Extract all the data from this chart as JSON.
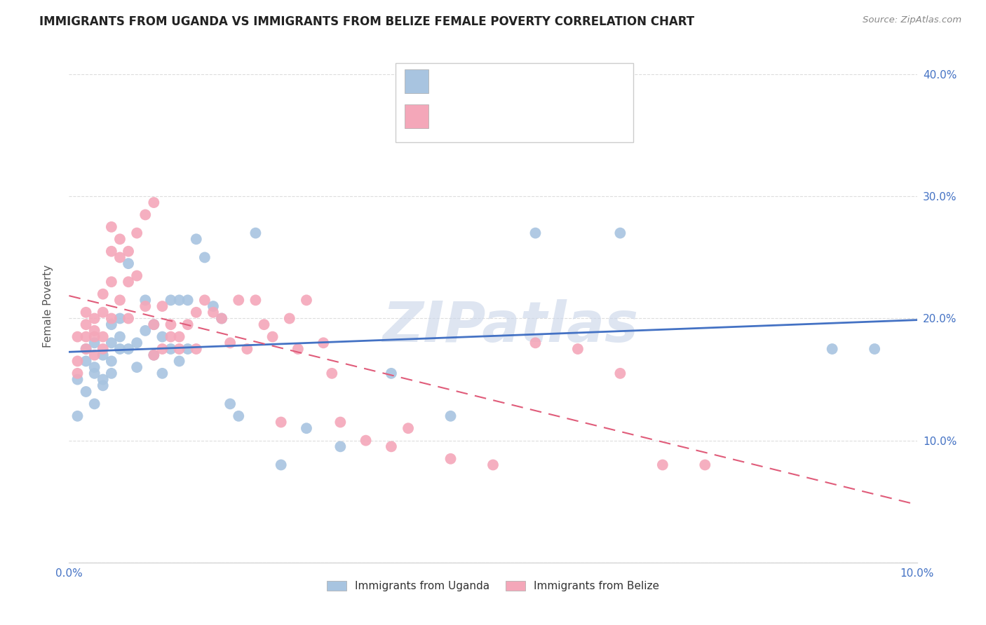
{
  "title": "IMMIGRANTS FROM UGANDA VS IMMIGRANTS FROM BELIZE FEMALE POVERTY CORRELATION CHART",
  "source": "Source: ZipAtlas.com",
  "ylabel": "Female Poverty",
  "xlim": [
    0.0,
    0.1
  ],
  "ylim": [
    0.0,
    0.42
  ],
  "uganda_color": "#a8c4e0",
  "belize_color": "#f4a7b9",
  "uganda_line_color": "#4472c4",
  "belize_line_color": "#e05c7a",
  "label_color": "#4472c4",
  "title_color": "#222222",
  "source_color": "#888888",
  "grid_color": "#dddddd",
  "background_color": "#ffffff",
  "watermark": "ZIPatlas",
  "uganda_points_x": [
    0.001,
    0.001,
    0.002,
    0.002,
    0.002,
    0.003,
    0.003,
    0.003,
    0.003,
    0.004,
    0.004,
    0.004,
    0.005,
    0.005,
    0.005,
    0.005,
    0.006,
    0.006,
    0.006,
    0.007,
    0.007,
    0.008,
    0.008,
    0.009,
    0.009,
    0.01,
    0.01,
    0.011,
    0.011,
    0.012,
    0.012,
    0.013,
    0.013,
    0.014,
    0.014,
    0.015,
    0.016,
    0.017,
    0.018,
    0.019,
    0.02,
    0.022,
    0.025,
    0.028,
    0.032,
    0.045,
    0.055,
    0.065,
    0.09,
    0.095,
    0.038
  ],
  "uganda_points_y": [
    0.15,
    0.12,
    0.165,
    0.14,
    0.175,
    0.155,
    0.13,
    0.16,
    0.18,
    0.15,
    0.17,
    0.145,
    0.155,
    0.165,
    0.18,
    0.195,
    0.175,
    0.185,
    0.2,
    0.245,
    0.175,
    0.16,
    0.18,
    0.19,
    0.215,
    0.17,
    0.195,
    0.185,
    0.155,
    0.175,
    0.215,
    0.165,
    0.215,
    0.175,
    0.215,
    0.265,
    0.25,
    0.21,
    0.2,
    0.13,
    0.12,
    0.27,
    0.08,
    0.11,
    0.095,
    0.12,
    0.27,
    0.27,
    0.175,
    0.175,
    0.155
  ],
  "belize_points_x": [
    0.001,
    0.001,
    0.001,
    0.002,
    0.002,
    0.002,
    0.002,
    0.003,
    0.003,
    0.003,
    0.003,
    0.004,
    0.004,
    0.004,
    0.004,
    0.005,
    0.005,
    0.005,
    0.005,
    0.006,
    0.006,
    0.006,
    0.007,
    0.007,
    0.007,
    0.008,
    0.008,
    0.009,
    0.009,
    0.01,
    0.01,
    0.01,
    0.011,
    0.011,
    0.012,
    0.012,
    0.013,
    0.013,
    0.014,
    0.015,
    0.015,
    0.016,
    0.017,
    0.018,
    0.019,
    0.02,
    0.021,
    0.022,
    0.023,
    0.024,
    0.025,
    0.026,
    0.027,
    0.028,
    0.03,
    0.031,
    0.032,
    0.035,
    0.038,
    0.04,
    0.045,
    0.05,
    0.055,
    0.06,
    0.065,
    0.07,
    0.075
  ],
  "belize_points_y": [
    0.185,
    0.155,
    0.165,
    0.185,
    0.175,
    0.195,
    0.205,
    0.19,
    0.17,
    0.185,
    0.2,
    0.22,
    0.175,
    0.205,
    0.185,
    0.255,
    0.23,
    0.2,
    0.275,
    0.25,
    0.215,
    0.265,
    0.23,
    0.2,
    0.255,
    0.235,
    0.27,
    0.285,
    0.21,
    0.295,
    0.195,
    0.17,
    0.21,
    0.175,
    0.185,
    0.195,
    0.185,
    0.175,
    0.195,
    0.175,
    0.205,
    0.215,
    0.205,
    0.2,
    0.18,
    0.215,
    0.175,
    0.215,
    0.195,
    0.185,
    0.115,
    0.2,
    0.175,
    0.215,
    0.18,
    0.155,
    0.115,
    0.1,
    0.095,
    0.11,
    0.085,
    0.08,
    0.18,
    0.175,
    0.155,
    0.08,
    0.08
  ]
}
